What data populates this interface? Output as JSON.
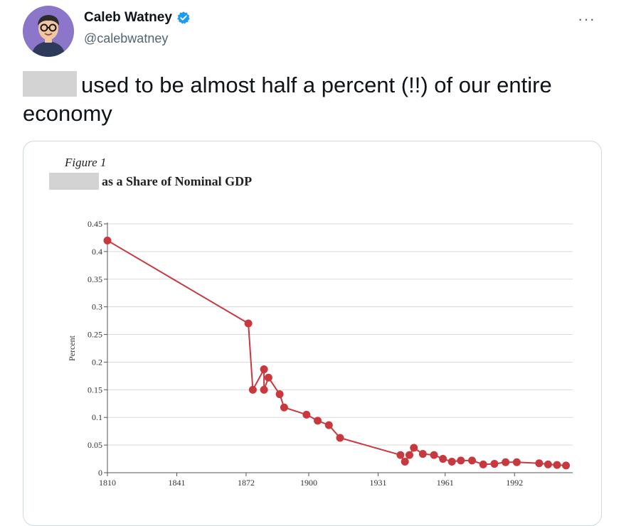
{
  "tweet": {
    "author_name": "Caleb Watney",
    "handle": "@calebwatney",
    "text": "used to be almost half a percent (!!) of our entire economy",
    "more_label": "···",
    "verified_icon": "verified-badge-icon",
    "accent_color": "#1d9bf0"
  },
  "figure": {
    "label": "Figure 1",
    "title": "as a Share of Nominal GDP"
  },
  "chart_data": {
    "type": "line",
    "title": "as a Share of Nominal GDP",
    "xlabel": "",
    "ylabel": "Percent",
    "x_ticks": [
      "1810",
      "1841",
      "1872",
      "1900",
      "1931",
      "1961",
      "1992"
    ],
    "y_ticks": [
      "0",
      "0.05",
      "0.1",
      "0.15",
      "0.2",
      "0.25",
      "0.3",
      "0.35",
      "0.4",
      "0.45"
    ],
    "xlim": [
      1810,
      2018
    ],
    "ylim": [
      0,
      0.45
    ],
    "grid": true,
    "color": "#c8393f",
    "series": [
      {
        "name": "Percent",
        "x": [
          1810,
          1873,
          1875,
          1880,
          1880,
          1882,
          1887,
          1889,
          1899,
          1904,
          1909,
          1914,
          1941,
          1943,
          1945,
          1947,
          1951,
          1956,
          1960,
          1964,
          1968,
          1973,
          1978,
          1983,
          1988,
          1993,
          2003,
          2007,
          2011,
          2015
        ],
        "y": [
          0.42,
          0.27,
          0.15,
          0.187,
          0.15,
          0.172,
          0.142,
          0.118,
          0.105,
          0.094,
          0.086,
          0.063,
          0.032,
          0.02,
          0.032,
          0.045,
          0.034,
          0.032,
          0.025,
          0.02,
          0.022,
          0.022,
          0.015,
          0.016,
          0.019,
          0.019,
          0.017,
          0.015,
          0.014,
          0.013
        ]
      }
    ]
  }
}
